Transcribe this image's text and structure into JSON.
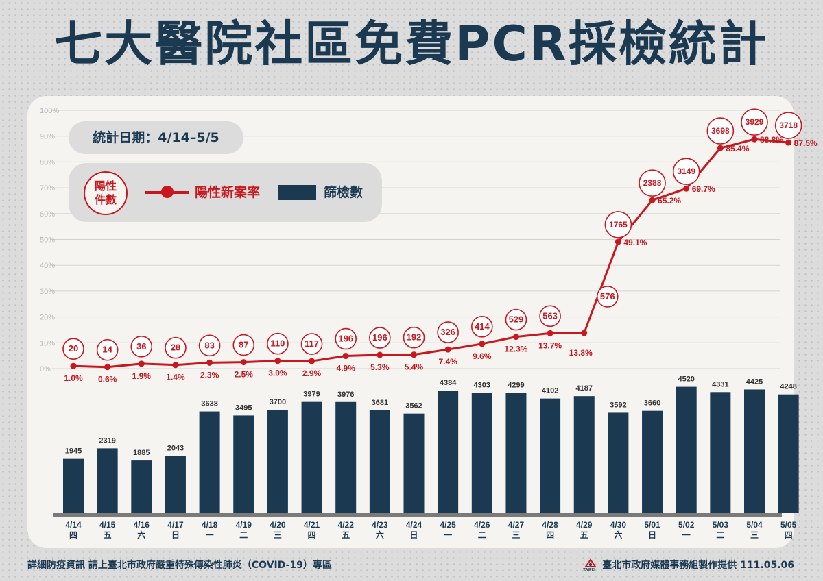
{
  "title": "七大醫院社區免費PCR採檢統計",
  "period_label": "統計日期：4/14–5/5",
  "legend": {
    "circle_label_line1": "陽性",
    "circle_label_line2": "件數",
    "line_label": "陽性新案率",
    "bar_label": "篩檢數"
  },
  "footer": {
    "left": "詳細防疫資訊 請上臺北市政府嚴重特殊傳染性肺炎（COVID-19）專區",
    "logo_text": "TAIPEI",
    "right": "臺北市政府媒體事務組製作提供 111.05.06"
  },
  "colors": {
    "navy": "#1b3a52",
    "red": "#c8171e",
    "card": "#f6f4f1",
    "background": "#dcdcdc"
  },
  "chart_data": {
    "type": "bar+line",
    "categories": [
      "4/14",
      "4/15",
      "4/16",
      "4/17",
      "4/18",
      "4/19",
      "4/20",
      "4/21",
      "4/22",
      "4/23",
      "4/24",
      "4/25",
      "4/26",
      "4/27",
      "4/28",
      "4/29",
      "4/30",
      "5/01",
      "5/02",
      "5/03",
      "5/04",
      "5/05"
    ],
    "weekdays": [
      "四",
      "五",
      "六",
      "日",
      "一",
      "二",
      "三",
      "四",
      "五",
      "六",
      "日",
      "一",
      "二",
      "三",
      "四",
      "五",
      "六",
      "日",
      "一",
      "二",
      "三",
      "四"
    ],
    "series": [
      {
        "name": "篩檢數",
        "type": "bar",
        "values": [
          1945,
          2319,
          1885,
          2043,
          3638,
          3495,
          3700,
          3979,
          3976,
          3681,
          3562,
          4384,
          4303,
          4299,
          4102,
          4187,
          3592,
          3660,
          4520,
          4331,
          4425,
          4248
        ]
      },
      {
        "name": "陽性新案率",
        "type": "line",
        "values": [
          1.0,
          0.6,
          1.9,
          1.4,
          2.3,
          2.5,
          3.0,
          2.9,
          4.9,
          5.3,
          5.4,
          7.4,
          9.6,
          12.3,
          13.7,
          13.8,
          49.1,
          65.2,
          69.7,
          85.4,
          88.8,
          87.5
        ]
      },
      {
        "name": "陽性件數",
        "type": "annotation",
        "values": [
          20,
          14,
          36,
          28,
          83,
          87,
          110,
          117,
          196,
          196,
          192,
          326,
          414,
          529,
          563,
          576,
          1765,
          2388,
          3149,
          3698,
          3929,
          3718
        ]
      }
    ],
    "y_ticks": [
      "0%",
      "10%",
      "20%",
      "30%",
      "40%",
      "50%",
      "60%",
      "70%",
      "80%",
      "90%",
      "100%"
    ],
    "ylim_rate": [
      0,
      100
    ],
    "grid": true
  }
}
